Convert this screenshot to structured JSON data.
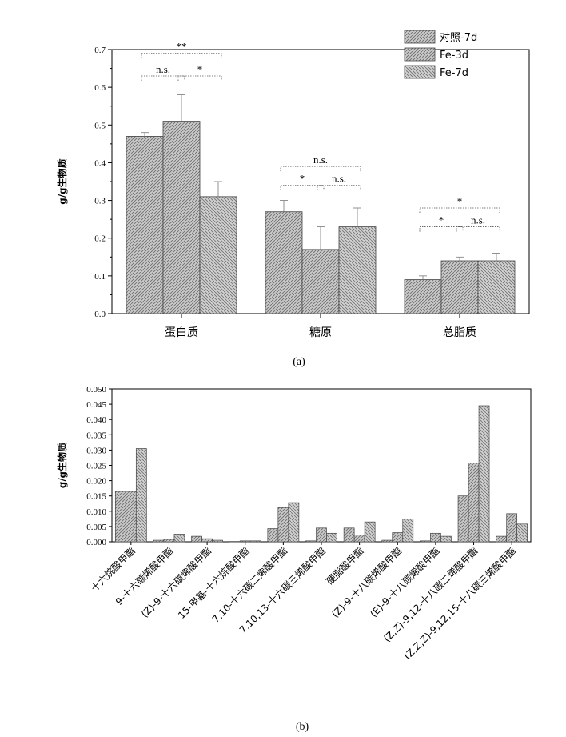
{
  "chart_data": [
    {
      "type": "bar",
      "caption": "(a)",
      "ylabel": "g/g生物质",
      "ylim": [
        0,
        0.7
      ],
      "yticks": [
        "0.0",
        "0.1",
        "0.2",
        "0.3",
        "0.4",
        "0.5",
        "0.6",
        "0.7"
      ],
      "categories": [
        "蛋白质",
        "糖原",
        "总脂质"
      ],
      "series": [
        {
          "name": "对照-7d",
          "values": [
            0.47,
            0.27,
            0.09
          ],
          "errors": [
            0.01,
            0.03,
            0.01
          ]
        },
        {
          "name": "Fe-3d",
          "values": [
            0.51,
            0.17,
            0.14
          ],
          "errors": [
            0.07,
            0.06,
            0.01
          ]
        },
        {
          "name": "Fe-7d",
          "values": [
            0.31,
            0.23,
            0.14
          ],
          "errors": [
            0.04,
            0.05,
            0.02
          ]
        }
      ],
      "significance": [
        {
          "label": "**",
          "cat": 0,
          "from": 0,
          "to": 2,
          "level": 0.69
        },
        {
          "label": "n.s.",
          "cat": 0,
          "from": 0,
          "to": 1,
          "level": 0.63
        },
        {
          "label": "*",
          "cat": 0,
          "from": 1,
          "to": 2,
          "level": 0.63
        },
        {
          "label": "n.s.",
          "cat": 1,
          "from": 0,
          "to": 2,
          "level": 0.39
        },
        {
          "label": "*",
          "cat": 1,
          "from": 0,
          "to": 1,
          "level": 0.34
        },
        {
          "label": "n.s.",
          "cat": 1,
          "from": 1,
          "to": 2,
          "level": 0.34
        },
        {
          "label": "*",
          "cat": 2,
          "from": 0,
          "to": 2,
          "level": 0.28
        },
        {
          "label": "*",
          "cat": 2,
          "from": 0,
          "to": 1,
          "level": 0.23
        },
        {
          "label": "n.s.",
          "cat": 2,
          "from": 1,
          "to": 2,
          "level": 0.23
        }
      ],
      "legend": "top-right"
    },
    {
      "type": "bar",
      "caption": "(b)",
      "ylabel": "g/g生物质",
      "ylim": [
        0,
        0.05
      ],
      "yticks": [
        "0.000",
        "0.005",
        "0.010",
        "0.015",
        "0.020",
        "0.025",
        "0.030",
        "0.035",
        "0.040",
        "0.045",
        "0.050"
      ],
      "categories": [
        "十六烷酸甲酯",
        "9-十六碳烯酸甲酯",
        "(Z)-9-十六碳烯酸甲酯",
        "15-甲基-十六烷酸甲酯",
        "7,10-十六碳二烯酸甲酯",
        "7,10,13-十六碳三烯酸甲酯",
        "硬脂酸甲酯",
        "(Z)-9-十八碳烯酸甲酯",
        "(E)-9-十八碳烯酸甲酯",
        "(Z,Z)-9,12-十八碳二烯酸甲酯",
        "(Z,Z,Z)-9,12,15-十八碳三烯酸甲酯"
      ],
      "series": [
        {
          "name": "对照-7d",
          "values": [
            0.0165,
            0.0005,
            0.0018,
            0.0001,
            0.0043,
            0.0003,
            0.0045,
            0.0005,
            0.0003,
            0.015,
            0.0018
          ]
        },
        {
          "name": "Fe-3d",
          "values": [
            0.0165,
            0.0008,
            0.001,
            0.0003,
            0.0112,
            0.0045,
            0.0022,
            0.003,
            0.0028,
            0.0258,
            0.0092
          ]
        },
        {
          "name": "Fe-7d",
          "values": [
            0.0305,
            0.0025,
            0.0005,
            0.0003,
            0.0128,
            0.0028,
            0.0065,
            0.0075,
            0.0018,
            0.0445,
            0.0058
          ]
        }
      ]
    }
  ]
}
